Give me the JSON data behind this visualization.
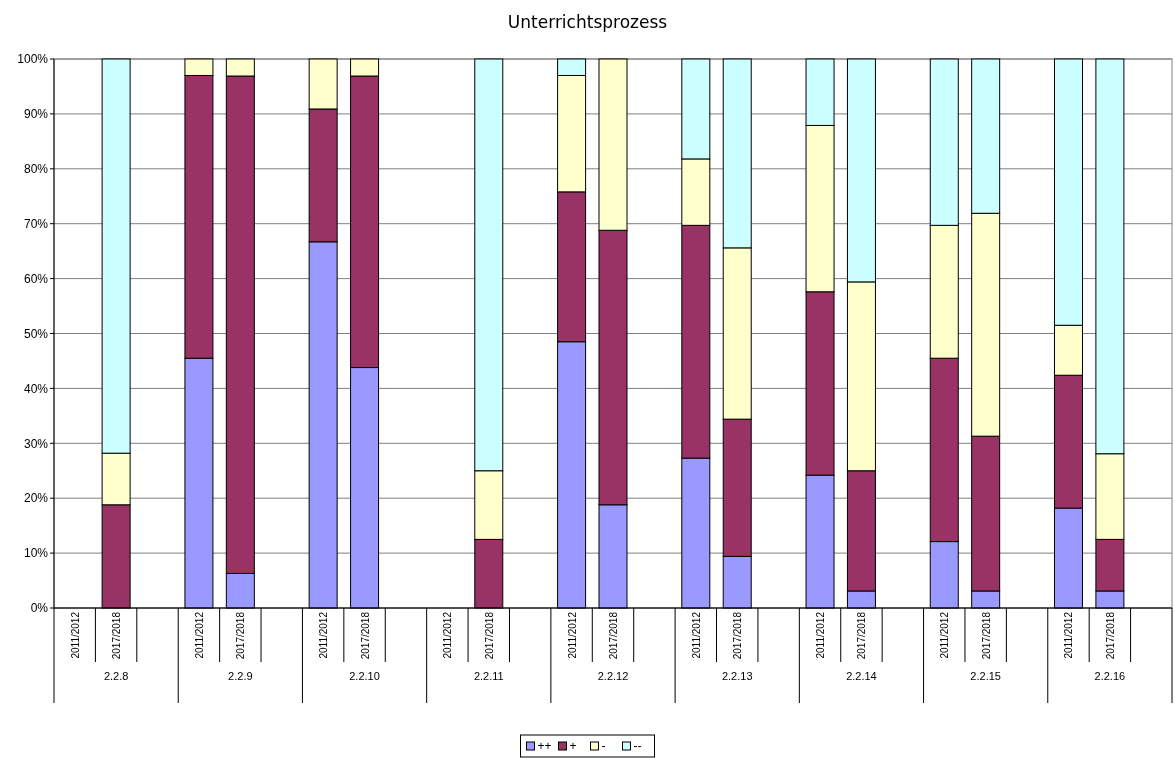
{
  "chart_data": {
    "type": "bar",
    "title": "Unterrichtsprozess",
    "stacked": true,
    "grid": "y",
    "legend": "bottom",
    "categories": [
      "2011/2012",
      "2017/2018",
      null,
      "2011/2012",
      "2017/2018",
      null,
      "2011/2012",
      "2017/2018",
      null,
      "2011/2012",
      "2017/2018",
      null,
      "2011/2012",
      "2017/2018",
      null,
      "2011/2012",
      "2017/2018",
      null,
      "2011/2012",
      "2017/2018",
      null,
      "2011/2012",
      "2017/2018",
      null,
      "2011/2012",
      "2017/2018",
      null
    ],
    "annotations": [
      "2.2.8",
      "2.2.9",
      "2.2.10",
      "2.2.11",
      "2.2.12",
      "2.2.13",
      "2.2.14",
      "2.2.15",
      "2.2.16"
    ],
    "ylim": [
      0,
      100
    ],
    "yticks": [
      {
        "value": 0,
        "label": "0%"
      },
      {
        "value": 10,
        "label": "10%"
      },
      {
        "value": 20,
        "label": "20%"
      },
      {
        "value": 30,
        "label": "30%"
      },
      {
        "value": 40,
        "label": "40%"
      },
      {
        "value": 50,
        "label": "50%"
      },
      {
        "value": 60,
        "label": "60%"
      },
      {
        "value": 70,
        "label": "70%"
      },
      {
        "value": 80,
        "label": "80%"
      },
      {
        "value": 90,
        "label": "90%"
      },
      {
        "value": 100,
        "label": "100%"
      }
    ],
    "series": [
      {
        "name": "++",
        "color": "#9999ff",
        "values": [
          null,
          0,
          null,
          45.5,
          6.3,
          null,
          66.7,
          43.8,
          null,
          null,
          0,
          null,
          48.5,
          18.8,
          null,
          27.3,
          9.4,
          null,
          24.2,
          3.1,
          null,
          12.1,
          3.1,
          null,
          18.2,
          3.1,
          null
        ]
      },
      {
        "name": "+",
        "color": "#993366",
        "values": [
          null,
          18.8,
          null,
          51.5,
          90.6,
          null,
          24.2,
          53.1,
          null,
          null,
          12.5,
          null,
          27.3,
          50,
          null,
          42.4,
          25,
          null,
          33.4,
          21.9,
          null,
          33.4,
          28.2,
          null,
          24.2,
          9.4,
          null
        ]
      },
      {
        "name": "-",
        "color": "#ffffcc",
        "values": [
          null,
          9.4,
          null,
          3.0,
          3.1,
          null,
          9.1,
          3.1,
          null,
          null,
          12.5,
          null,
          21.2,
          31.2,
          null,
          12.1,
          31.2,
          null,
          30.3,
          34.4,
          null,
          24.2,
          40.6,
          null,
          9.1,
          15.6,
          null
        ]
      },
      {
        "name": "--",
        "color": "#ccffff",
        "values": [
          null,
          71.8,
          null,
          0,
          0,
          null,
          0,
          0,
          null,
          null,
          75,
          null,
          3.0,
          0,
          null,
          18.2,
          34.4,
          null,
          12.1,
          40.6,
          null,
          30.3,
          28.1,
          null,
          48.5,
          71.9,
          null
        ]
      }
    ]
  }
}
